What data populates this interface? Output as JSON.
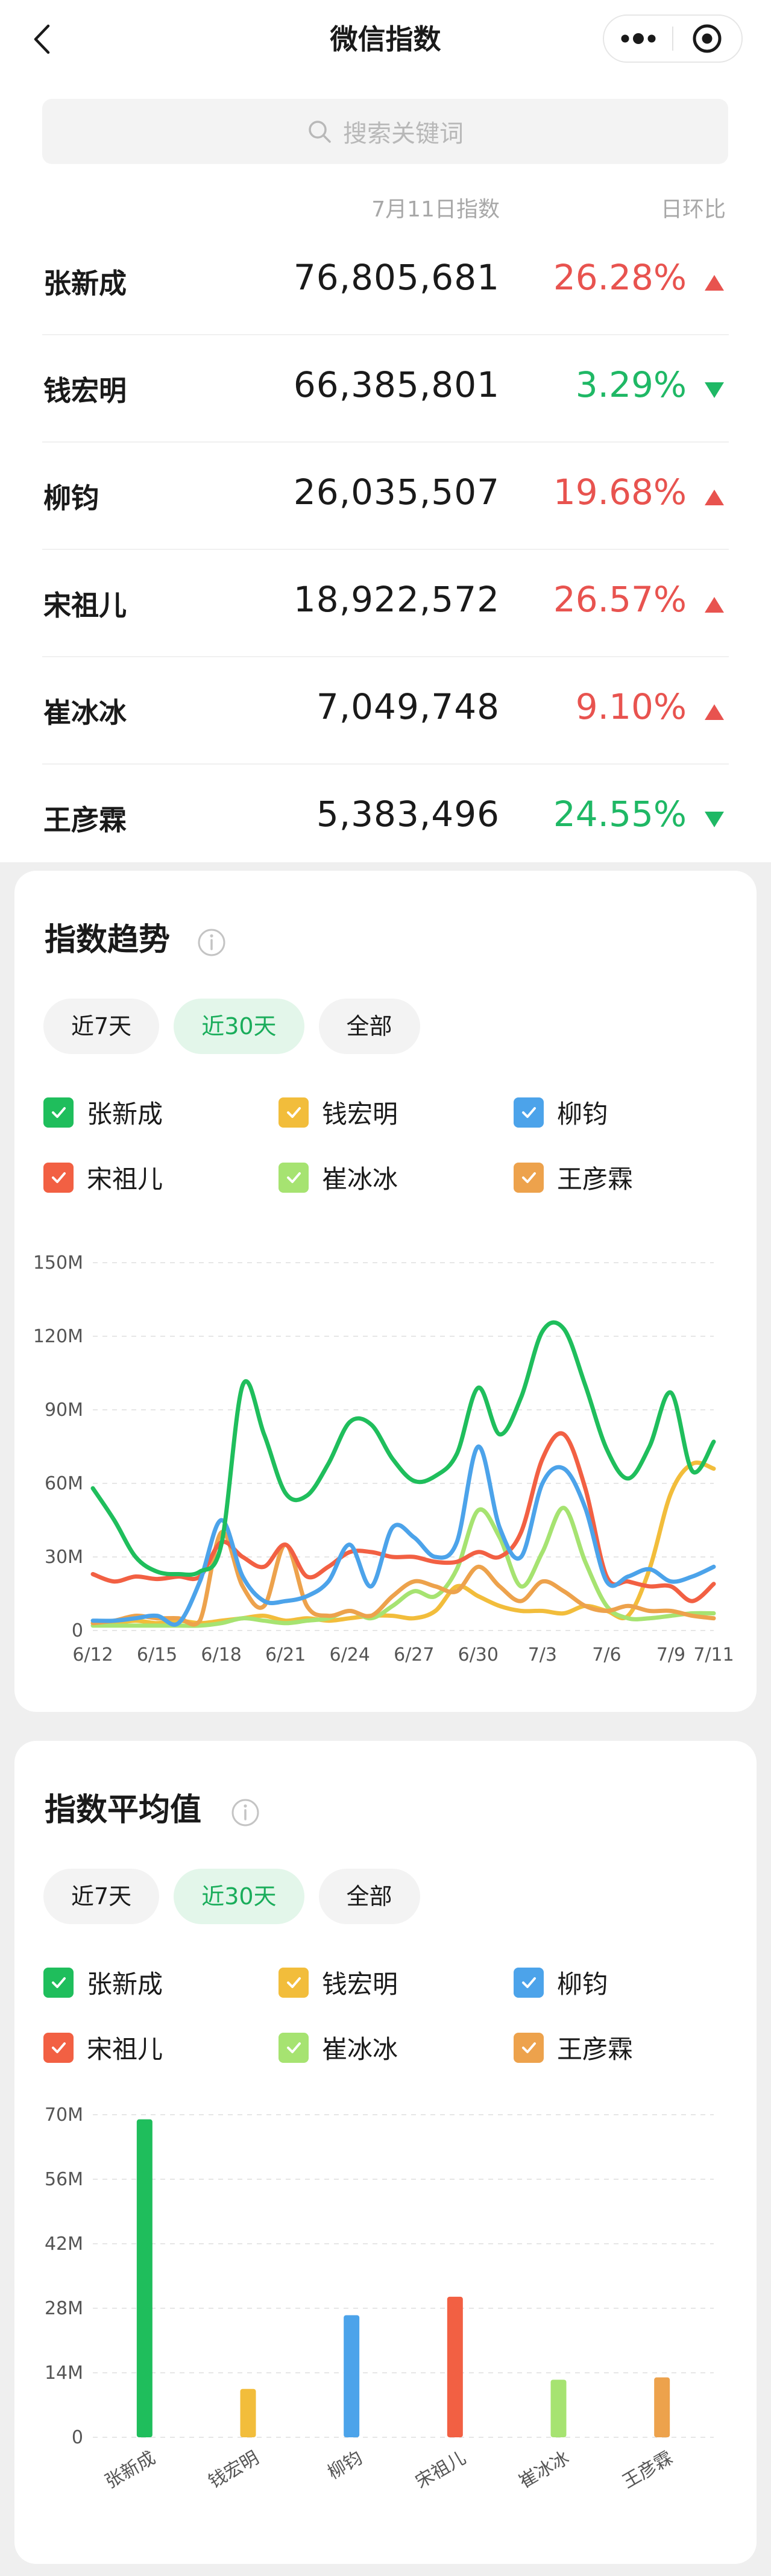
{
  "navbar": {
    "title": "微信指数",
    "back_icon": "chevron-left-icon",
    "more_icon": "more-dots-icon",
    "close_icon": "target-close-icon"
  },
  "search": {
    "placeholder": "搜索关键词",
    "icon": "search-icon"
  },
  "list": {
    "date_header": "7月11日指数",
    "change_header": "日环比",
    "rows": [
      {
        "name": "张新成",
        "value": "76,805,681",
        "change": "26.28%",
        "direction": "up"
      },
      {
        "name": "钱宏明",
        "value": "66,385,801",
        "change": "3.29%",
        "direction": "down"
      },
      {
        "name": "柳钧",
        "value": "26,035,507",
        "change": "19.68%",
        "direction": "up"
      },
      {
        "name": "宋祖儿",
        "value": "18,922,572",
        "change": "26.57%",
        "direction": "up"
      },
      {
        "name": "崔冰冰",
        "value": "7,049,748",
        "change": "9.10%",
        "direction": "up"
      },
      {
        "name": "王彦霖",
        "value": "5,383,496",
        "change": "24.55%",
        "direction": "down"
      }
    ]
  },
  "colors": {
    "up": "#e8534f",
    "down": "#1fb865",
    "s1": "#1fbe5c",
    "s2": "#f2bd3b",
    "s3": "#4ca3ea",
    "s4": "#f26043",
    "s5": "#a6e371",
    "s6": "#eda24c"
  },
  "trend": {
    "title": "指数趋势",
    "tabs": [
      "近7天",
      "近30天",
      "全部"
    ],
    "active_tab": 1,
    "legend": [
      "张新成",
      "钱宏明",
      "柳钧",
      "宋祖儿",
      "崔冰冰",
      "王彦霖"
    ]
  },
  "average": {
    "title": "指数平均值",
    "tabs": [
      "近7天",
      "近30天",
      "全部"
    ],
    "active_tab": 1,
    "legend": [
      "张新成",
      "钱宏明",
      "柳钧",
      "宋祖儿",
      "崔冰冰",
      "王彦霖"
    ]
  },
  "chart_data": [
    {
      "type": "line",
      "title": "指数趋势",
      "x": [
        "6/12",
        "6/13",
        "6/14",
        "6/15",
        "6/16",
        "6/17",
        "6/18",
        "6/19",
        "6/20",
        "6/21",
        "6/22",
        "6/23",
        "6/24",
        "6/25",
        "6/26",
        "6/27",
        "6/28",
        "6/29",
        "6/30",
        "7/1",
        "7/2",
        "7/3",
        "7/4",
        "7/5",
        "7/6",
        "7/7",
        "7/8",
        "7/9",
        "7/10",
        "7/11"
      ],
      "x_tick_labels": [
        "6/12",
        "6/15",
        "6/18",
        "6/21",
        "6/24",
        "6/27",
        "6/30",
        "7/3",
        "7/6",
        "7/9",
        "7/11"
      ],
      "y_tick_labels": [
        "0",
        "30M",
        "60M",
        "90M",
        "120M",
        "150M"
      ],
      "ylim": [
        0,
        150000000
      ],
      "grid": true,
      "legend": "top",
      "series": [
        {
          "name": "张新成",
          "color": "#1fbe5c",
          "values": [
            58000000,
            45000000,
            30000000,
            24000000,
            23000000,
            24000000,
            35000000,
            100000000,
            80000000,
            56000000,
            55000000,
            68000000,
            85000000,
            84000000,
            70000000,
            61000000,
            63000000,
            72000000,
            99000000,
            80000000,
            95000000,
            122000000,
            123000000,
            100000000,
            74000000,
            62000000,
            75000000,
            97000000,
            65000000,
            77000000
          ]
        },
        {
          "name": "钱宏明",
          "color": "#f2bd3b",
          "values": [
            3000000,
            3000000,
            4000000,
            3000000,
            4000000,
            3000000,
            4000000,
            5000000,
            6000000,
            4000000,
            5000000,
            4000000,
            5000000,
            6000000,
            6000000,
            5000000,
            8000000,
            18000000,
            14000000,
            10000000,
            8000000,
            8000000,
            7000000,
            10000000,
            8000000,
            6000000,
            25000000,
            56000000,
            68000000,
            66000000
          ]
        },
        {
          "name": "柳钧",
          "color": "#4ca3ea",
          "values": [
            4000000,
            4000000,
            5000000,
            6000000,
            3000000,
            20000000,
            45000000,
            22000000,
            12000000,
            12000000,
            14000000,
            20000000,
            35000000,
            18000000,
            42000000,
            38000000,
            30000000,
            36000000,
            75000000,
            42000000,
            30000000,
            60000000,
            66000000,
            50000000,
            20000000,
            22000000,
            25000000,
            20000000,
            22000000,
            26000000
          ]
        },
        {
          "name": "宋祖儿",
          "color": "#f26043",
          "values": [
            23000000,
            20000000,
            22000000,
            21000000,
            22000000,
            22000000,
            36000000,
            30000000,
            26000000,
            35000000,
            22000000,
            26000000,
            32000000,
            32000000,
            30000000,
            30000000,
            28000000,
            28000000,
            32000000,
            30000000,
            40000000,
            70000000,
            80000000,
            58000000,
            22000000,
            20000000,
            18000000,
            18000000,
            12000000,
            19000000
          ]
        },
        {
          "name": "崔冰冰",
          "color": "#a6e371",
          "values": [
            2000000,
            2000000,
            2000000,
            2000000,
            2000000,
            2000000,
            3000000,
            5000000,
            4000000,
            3000000,
            4000000,
            5000000,
            8000000,
            5000000,
            10000000,
            16000000,
            14000000,
            25000000,
            49000000,
            38000000,
            18000000,
            32000000,
            50000000,
            28000000,
            10000000,
            5000000,
            5000000,
            6000000,
            7000000,
            7000000
          ]
        },
        {
          "name": "王彦霖",
          "color": "#eda24c",
          "values": [
            3000000,
            4000000,
            6000000,
            5000000,
            5000000,
            4000000,
            40000000,
            18000000,
            10000000,
            35000000,
            10000000,
            6000000,
            8000000,
            6000000,
            14000000,
            20000000,
            18000000,
            16000000,
            26000000,
            18000000,
            12000000,
            20000000,
            16000000,
            10000000,
            8000000,
            10000000,
            8000000,
            8000000,
            6000000,
            5000000
          ]
        }
      ]
    },
    {
      "type": "bar",
      "title": "指数平均值",
      "categories": [
        "张新成",
        "钱宏明",
        "柳钧",
        "宋祖儿",
        "崔冰冰",
        "王彦霖"
      ],
      "values": [
        69000000,
        10500000,
        26500000,
        30500000,
        12500000,
        13000000
      ],
      "colors": [
        "#1fbe5c",
        "#f2bd3b",
        "#4ca3ea",
        "#f26043",
        "#a6e371",
        "#eda24c"
      ],
      "y_tick_labels": [
        "0",
        "14M",
        "28M",
        "42M",
        "56M",
        "70M"
      ],
      "ylim": [
        0,
        70000000
      ],
      "grid": true
    }
  ]
}
